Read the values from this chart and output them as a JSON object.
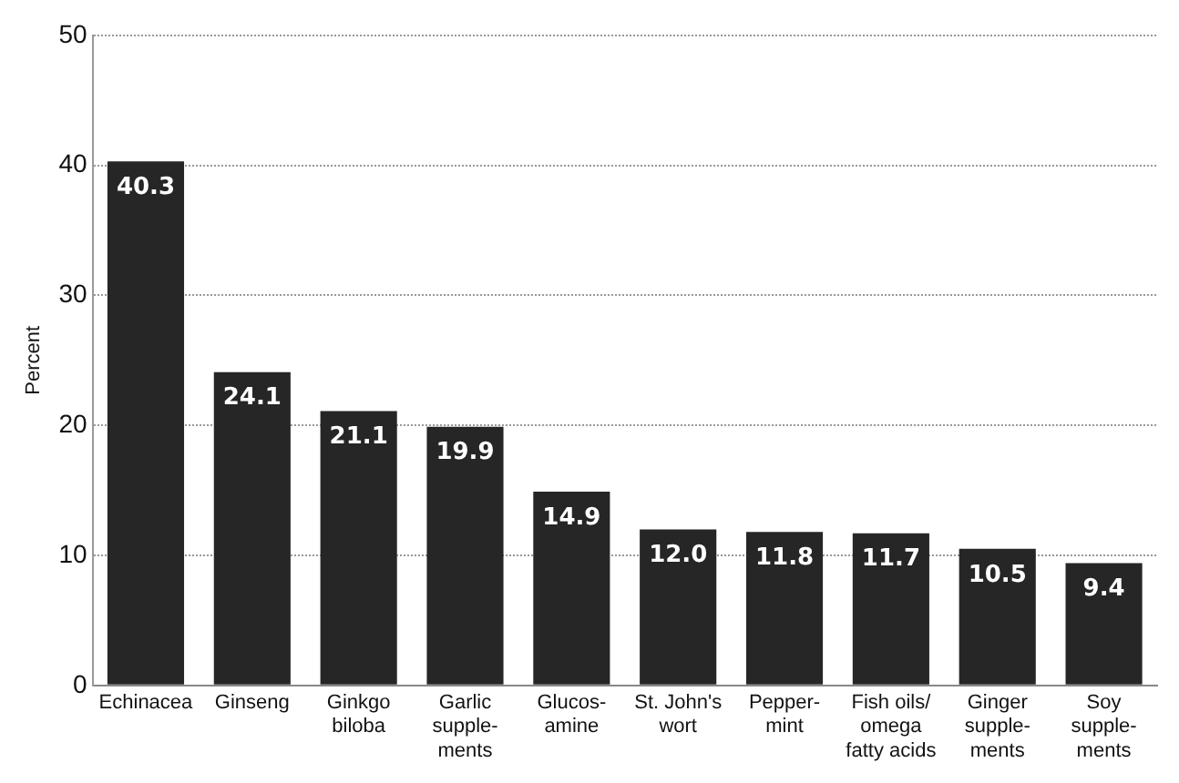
{
  "chart_data": {
    "type": "bar",
    "ylabel": "Percent",
    "categories": [
      "Echinacea",
      "Ginseng",
      "Ginkgo\nbiloba",
      "Garlic\nsupple-\nments",
      "Glucos-\namine",
      "St. John's\nwort",
      "Pepper-\nmint",
      "Fish oils/\nomega\nfatty acids",
      "Ginger\nsupple-\nments",
      "Soy\nsupple-\nments"
    ],
    "values": [
      40.3,
      24.1,
      21.1,
      19.9,
      14.9,
      12.0,
      11.8,
      11.7,
      10.5,
      9.4
    ],
    "value_labels": [
      "40.3",
      "24.1",
      "21.1",
      "19.9",
      "14.9",
      "12.0",
      "11.8",
      "11.7",
      "10.5",
      "9.4"
    ],
    "color": "#262626",
    "ylim": [
      0,
      50
    ],
    "yticks": [
      0,
      10,
      20,
      30,
      40,
      50
    ],
    "grid": "y",
    "legend": false
  }
}
